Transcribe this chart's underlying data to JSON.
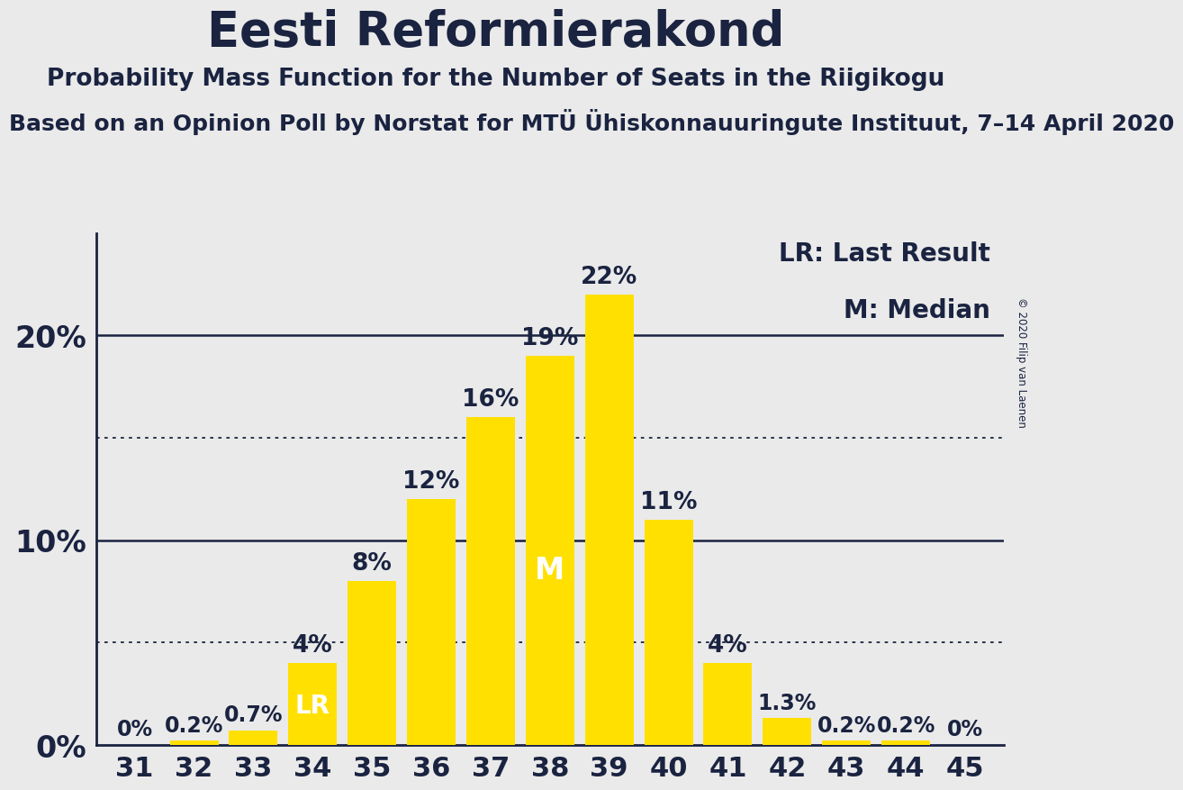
{
  "title": "Eesti Reformierakond",
  "subtitle": "Probability Mass Function for the Number of Seats in the Riigikogu",
  "source_line": "Based on an Opinion Poll by Norstat for MTÜ Ühiskonnauuringute Instituut, 7–14 April 2020",
  "copyright": "© 2020 Filip van Laenen",
  "seats": [
    31,
    32,
    33,
    34,
    35,
    36,
    37,
    38,
    39,
    40,
    41,
    42,
    43,
    44,
    45
  ],
  "probabilities": [
    0.0,
    0.2,
    0.7,
    4.0,
    8.0,
    12.0,
    16.0,
    19.0,
    22.0,
    11.0,
    4.0,
    1.3,
    0.2,
    0.2,
    0.0
  ],
  "bar_color": "#FFE000",
  "background_color": "#EAEAEA",
  "text_color": "#1a2340",
  "lr_seat": 34,
  "median_seat": 38,
  "ylim": [
    0,
    25
  ],
  "yticks": [
    0,
    10,
    20
  ],
  "ytick_labels": [
    "0%",
    "10%",
    "20%"
  ],
  "dotted_lines": [
    5,
    15
  ],
  "legend_lr": "LR: Last Result",
  "legend_m": "M: Median",
  "bar_labels": {
    "31": "0%",
    "32": "0.2%",
    "33": "0.7%",
    "34": "4%",
    "35": "8%",
    "36": "12%",
    "37": "16%",
    "38": "19%",
    "39": "22%",
    "40": "11%",
    "41": "4%",
    "42": "1.3%",
    "43": "0.2%",
    "44": "0.2%",
    "45": "0%"
  }
}
